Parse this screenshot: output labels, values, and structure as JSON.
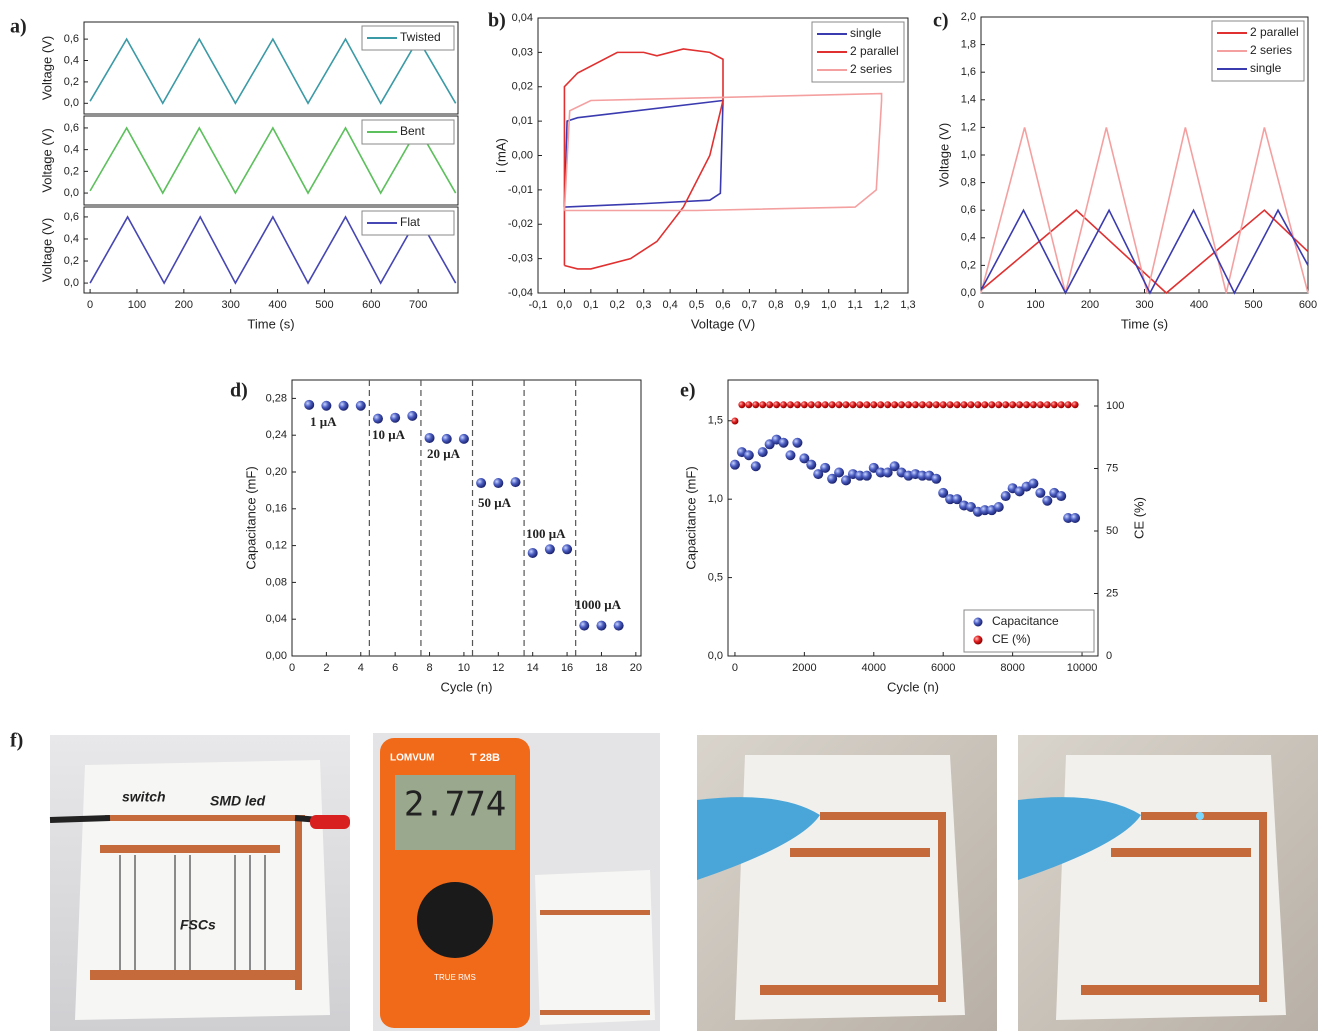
{
  "chart_data": [
    {
      "type": "line",
      "label": "a)",
      "ylabel": "Voltage (V)",
      "xlim": [
        -13,
        785
      ],
      "ylim": [
        -0.1,
        0.76
      ],
      "yticks": [
        {
          "value": 0,
          "label": "0,0"
        },
        {
          "value": 0.2,
          "label": "0,2"
        },
        {
          "value": 0.4,
          "label": "0,4"
        },
        {
          "value": 0.6,
          "label": "0,6"
        }
      ],
      "legend": "upper right",
      "series": [
        {
          "name": "Twisted",
          "color": "#3a9aa6",
          "x": [
            0,
            78,
            155,
            233,
            310,
            390,
            465,
            545,
            620,
            700,
            780
          ],
          "values": [
            0.02,
            0.6,
            0,
            0.6,
            0,
            0.6,
            0,
            0.6,
            0,
            0.6,
            0
          ]
        }
      ]
    },
    {
      "type": "line",
      "ylabel": "Voltage (V)",
      "xlim": [
        -13,
        785
      ],
      "ylim": [
        -0.11,
        0.71
      ],
      "yticks": [
        {
          "value": 0,
          "label": "0,0"
        },
        {
          "value": 0.2,
          "label": "0,2"
        },
        {
          "value": 0.4,
          "label": "0,4"
        },
        {
          "value": 0.6,
          "label": "0,6"
        }
      ],
      "legend": "upper right",
      "series": [
        {
          "name": "Bent",
          "color": "#5cc05c",
          "x": [
            0,
            78,
            155,
            233,
            310,
            390,
            465,
            545,
            620,
            700,
            780
          ],
          "values": [
            0.02,
            0.6,
            0,
            0.6,
            0,
            0.6,
            0,
            0.6,
            0,
            0.6,
            0
          ]
        }
      ]
    },
    {
      "type": "line",
      "ylabel": "Voltage (V)",
      "xlabel": "Time (s)",
      "xlim": [
        -13,
        785
      ],
      "ylim": [
        -0.09,
        0.69
      ],
      "xticks": [
        0,
        100,
        200,
        300,
        400,
        500,
        600,
        700
      ],
      "yticks": [
        {
          "value": 0,
          "label": "0,0"
        },
        {
          "value": 0.2,
          "label": "0,2"
        },
        {
          "value": 0.4,
          "label": "0,4"
        },
        {
          "value": 0.6,
          "label": "0,6"
        }
      ],
      "legend": "upper right",
      "series": [
        {
          "name": "Flat",
          "color": "#4646b4",
          "x": [
            0,
            80,
            158,
            235,
            310,
            390,
            465,
            545,
            620,
            700,
            780
          ],
          "values": [
            0,
            0.6,
            0,
            0.6,
            0,
            0.6,
            0,
            0.6,
            0,
            0.6,
            0
          ]
        }
      ]
    },
    {
      "type": "line",
      "label": "b)",
      "ylabel": "i (mA)",
      "xlabel": "Voltage (V)",
      "xlim": [
        -0.1,
        1.3
      ],
      "ylim": [
        -0.04,
        0.04
      ],
      "xticks": [
        {
          "value": -0.1,
          "label": "-0,1"
        },
        {
          "value": 0,
          "label": "0,0"
        },
        {
          "value": 0.1,
          "label": "0,1"
        },
        {
          "value": 0.2,
          "label": "0,2"
        },
        {
          "value": 0.3,
          "label": "0,3"
        },
        {
          "value": 0.4,
          "label": "0,4"
        },
        {
          "value": 0.5,
          "label": "0,5"
        },
        {
          "value": 0.6,
          "label": "0,6"
        },
        {
          "value": 0.7,
          "label": "0,7"
        },
        {
          "value": 0.8,
          "label": "0,8"
        },
        {
          "value": 0.9,
          "label": "0,9"
        },
        {
          "value": 1.0,
          "label": "1,0"
        },
        {
          "value": 1.1,
          "label": "1,1"
        },
        {
          "value": 1.2,
          "label": "1,2"
        },
        {
          "value": 1.3,
          "label": "1,3"
        }
      ],
      "yticks": [
        {
          "value": -0.04,
          "label": "-0,04"
        },
        {
          "value": -0.03,
          "label": "-0,03"
        },
        {
          "value": -0.02,
          "label": "-0,02"
        },
        {
          "value": -0.01,
          "label": "-0,01"
        },
        {
          "value": 0,
          "label": "0,00"
        },
        {
          "value": 0.01,
          "label": "0,01"
        },
        {
          "value": 0.02,
          "label": "0,02"
        },
        {
          "value": 0.03,
          "label": "0,03"
        },
        {
          "value": 0.04,
          "label": "0,04"
        }
      ],
      "legend": "upper right",
      "series": [
        {
          "name": "single",
          "color": "#3b3bb0",
          "x": [
            0,
            0.01,
            0.05,
            0.6,
            0.6,
            0.59,
            0.55,
            0.3,
            0
          ],
          "values": [
            -0.015,
            0.01,
            0.011,
            0.016,
            0.016,
            -0.011,
            -0.013,
            -0.014,
            -0.015
          ]
        },
        {
          "name": "2 parallel",
          "color": "#e03030",
          "x": [
            0,
            0,
            0.05,
            0.2,
            0.3,
            0.35,
            0.45,
            0.55,
            0.6,
            0.6,
            0.55,
            0.45,
            0.35,
            0.25,
            0.1,
            0.05,
            0
          ],
          "values": [
            -0.032,
            0.02,
            0.024,
            0.03,
            0.03,
            0.029,
            0.031,
            0.03,
            0.028,
            0.016,
            0,
            -0.015,
            -0.025,
            -0.03,
            -0.033,
            -0.033,
            -0.032
          ]
        },
        {
          "name": "2 series",
          "color": "#f4a0a0",
          "x": [
            0,
            0.02,
            0.1,
            1.2,
            1.2,
            1.18,
            1.1,
            0.5,
            0
          ],
          "values": [
            -0.016,
            0.013,
            0.016,
            0.018,
            0.016,
            -0.01,
            -0.015,
            -0.016,
            -0.016
          ]
        }
      ]
    },
    {
      "type": "line",
      "label": "c)",
      "ylabel": "Voltage (V)",
      "xlabel": "Time (s)",
      "xlim": [
        0,
        600
      ],
      "ylim": [
        0,
        2
      ],
      "xticks": [
        0,
        100,
        200,
        300,
        400,
        500,
        600
      ],
      "yticks": [
        {
          "value": 0,
          "label": "0,0"
        },
        {
          "value": 0.2,
          "label": "0,2"
        },
        {
          "value": 0.4,
          "label": "0,4"
        },
        {
          "value": 0.6,
          "label": "0,6"
        },
        {
          "value": 0.8,
          "label": "0,8"
        },
        {
          "value": 1.0,
          "label": "1,0"
        },
        {
          "value": 1.2,
          "label": "1,2"
        },
        {
          "value": 1.4,
          "label": "1,4"
        },
        {
          "value": 1.6,
          "label": "1,6"
        },
        {
          "value": 1.8,
          "label": "1,8"
        },
        {
          "value": 2.0,
          "label": "2,0"
        }
      ],
      "legend": "upper right",
      "series": [
        {
          "name": "2 parallel",
          "color": "#e03030",
          "x": [
            0,
            175,
            340,
            520,
            600
          ],
          "values": [
            0.02,
            0.6,
            0,
            0.6,
            0.3
          ]
        },
        {
          "name": "2 series",
          "color": "#f4a0a0",
          "x": [
            0,
            80,
            155,
            230,
            305,
            375,
            450,
            520,
            600
          ],
          "values": [
            0,
            1.2,
            0,
            1.2,
            0,
            1.2,
            0,
            1.2,
            0
          ]
        },
        {
          "name": "single",
          "color": "#3b3bb0",
          "x": [
            0,
            78,
            155,
            235,
            310,
            390,
            465,
            545,
            600
          ],
          "values": [
            0.02,
            0.6,
            0,
            0.6,
            0,
            0.6,
            0,
            0.6,
            0.2
          ]
        }
      ]
    },
    {
      "type": "scatter",
      "label": "d)",
      "ylabel": "Capacitance (mF)",
      "xlabel": "Cycle (n)",
      "xlim": [
        0,
        20.3
      ],
      "ylim": [
        0,
        0.3
      ],
      "xticks": [
        0,
        2,
        4,
        6,
        8,
        10,
        12,
        14,
        16,
        18,
        20
      ],
      "yticks": [
        {
          "value": 0,
          "label": "0,00"
        },
        {
          "value": 0.04,
          "label": "0,04"
        },
        {
          "value": 0.08,
          "label": "0,08"
        },
        {
          "value": 0.12,
          "label": "0,12"
        },
        {
          "value": 0.16,
          "label": "0,16"
        },
        {
          "value": 0.2,
          "label": "0,20"
        },
        {
          "value": 0.24,
          "label": "0,24"
        },
        {
          "value": 0.28,
          "label": "0,28"
        }
      ],
      "vlines": [
        4.5,
        7.5,
        10.5,
        13.5,
        16.5
      ],
      "annotations": [
        "1 μA",
        "10 μA",
        "20 μA",
        "50 μA",
        "100 μA",
        "1000 μA"
      ],
      "series": [
        {
          "color": "#3a4fb0",
          "x": [
            1,
            2,
            3,
            4,
            5,
            6,
            7,
            8,
            9,
            10,
            11,
            12,
            13,
            14,
            15,
            16,
            17,
            18,
            19
          ],
          "values": [
            0.273,
            0.272,
            0.272,
            0.272,
            0.258,
            0.259,
            0.261,
            0.237,
            0.236,
            0.236,
            0.188,
            0.188,
            0.189,
            0.112,
            0.116,
            0.116,
            0.033,
            0.033,
            0.033
          ]
        }
      ]
    },
    {
      "type": "scatter",
      "label": "e)",
      "ylabel": "Capacitance (mF)",
      "y2label": "CE (%)",
      "xlabel": "Cycle (n)",
      "xlim": [
        -200,
        10460
      ],
      "ylim": [
        0,
        1.76
      ],
      "y2lim": [
        0,
        110.4
      ],
      "xticks": [
        0,
        2000,
        4000,
        6000,
        8000,
        10000
      ],
      "yticks": [
        {
          "value": 0,
          "label": "0,0"
        },
        {
          "value": 0.5,
          "label": "0,5"
        },
        {
          "value": 1.0,
          "label": "1,0"
        },
        {
          "value": 1.5,
          "label": "1,5"
        }
      ],
      "y2ticks": [
        0,
        25,
        50,
        75,
        100
      ],
      "legend": "lower right",
      "series": [
        {
          "name": "Capacitance",
          "color": "#3a4fb0",
          "x": [
            0,
            200,
            400,
            600,
            800,
            1000,
            1200,
            1400,
            1600,
            1800,
            2000,
            2200,
            2400,
            2600,
            2800,
            3000,
            3200,
            3400,
            3600,
            3800,
            4000,
            4200,
            4400,
            4600,
            4800,
            5000,
            5200,
            5400,
            5600,
            5800,
            6000,
            6200,
            6400,
            6600,
            6800,
            7000,
            7200,
            7400,
            7600,
            7800,
            8000,
            8200,
            8400,
            8600,
            8800,
            9000,
            9200,
            9400,
            9600,
            9800
          ],
          "values": [
            1.22,
            1.3,
            1.28,
            1.21,
            1.3,
            1.35,
            1.38,
            1.36,
            1.28,
            1.36,
            1.26,
            1.22,
            1.16,
            1.2,
            1.13,
            1.17,
            1.12,
            1.16,
            1.15,
            1.15,
            1.2,
            1.17,
            1.17,
            1.21,
            1.17,
            1.15,
            1.16,
            1.15,
            1.15,
            1.13,
            1.04,
            1.0,
            1.0,
            0.96,
            0.95,
            0.92,
            0.93,
            0.93,
            0.95,
            1.02,
            1.07,
            1.05,
            1.08,
            1.1,
            1.04,
            0.99,
            1.04,
            1.02,
            0.88,
            0.88
          ]
        },
        {
          "name": "CE (%)",
          "color": "#e02020",
          "axis": "y2",
          "x": [
            0,
            200,
            400,
            600,
            800,
            1000,
            1200,
            1400,
            1600,
            1800,
            2000,
            2200,
            2400,
            2600,
            2800,
            3000,
            3200,
            3400,
            3600,
            3800,
            4000,
            4200,
            4400,
            4600,
            4800,
            5000,
            5200,
            5400,
            5600,
            5800,
            6000,
            6200,
            6400,
            6600,
            6800,
            7000,
            7200,
            7400,
            7600,
            7800,
            8000,
            8200,
            8400,
            8600,
            8800,
            9000,
            9200,
            9400,
            9600,
            9800
          ],
          "values": [
            94,
            100.5,
            100.5,
            100.5,
            100.5,
            100.5,
            100.5,
            100.5,
            100.5,
            100.5,
            100.5,
            100.5,
            100.5,
            100.5,
            100.5,
            100.5,
            100.5,
            100.5,
            100.5,
            100.5,
            100.5,
            100.5,
            100.5,
            100.5,
            100.5,
            100.5,
            100.5,
            100.5,
            100.5,
            100.5,
            100.5,
            100.5,
            100.5,
            100.5,
            100.5,
            100.5,
            100.5,
            100.5,
            100.5,
            100.5,
            100.5,
            100.5,
            100.5,
            100.5,
            100.5,
            100.5,
            100.5,
            100.5,
            100.5,
            100.5
          ]
        }
      ]
    }
  ],
  "figure_f": {
    "label": "f)",
    "photo_1": [
      "switch",
      "SMD led",
      "FSCs"
    ],
    "photo_2": [
      "LOMVUM",
      "T 28B",
      "2.774",
      "TRUE RMS"
    ]
  }
}
